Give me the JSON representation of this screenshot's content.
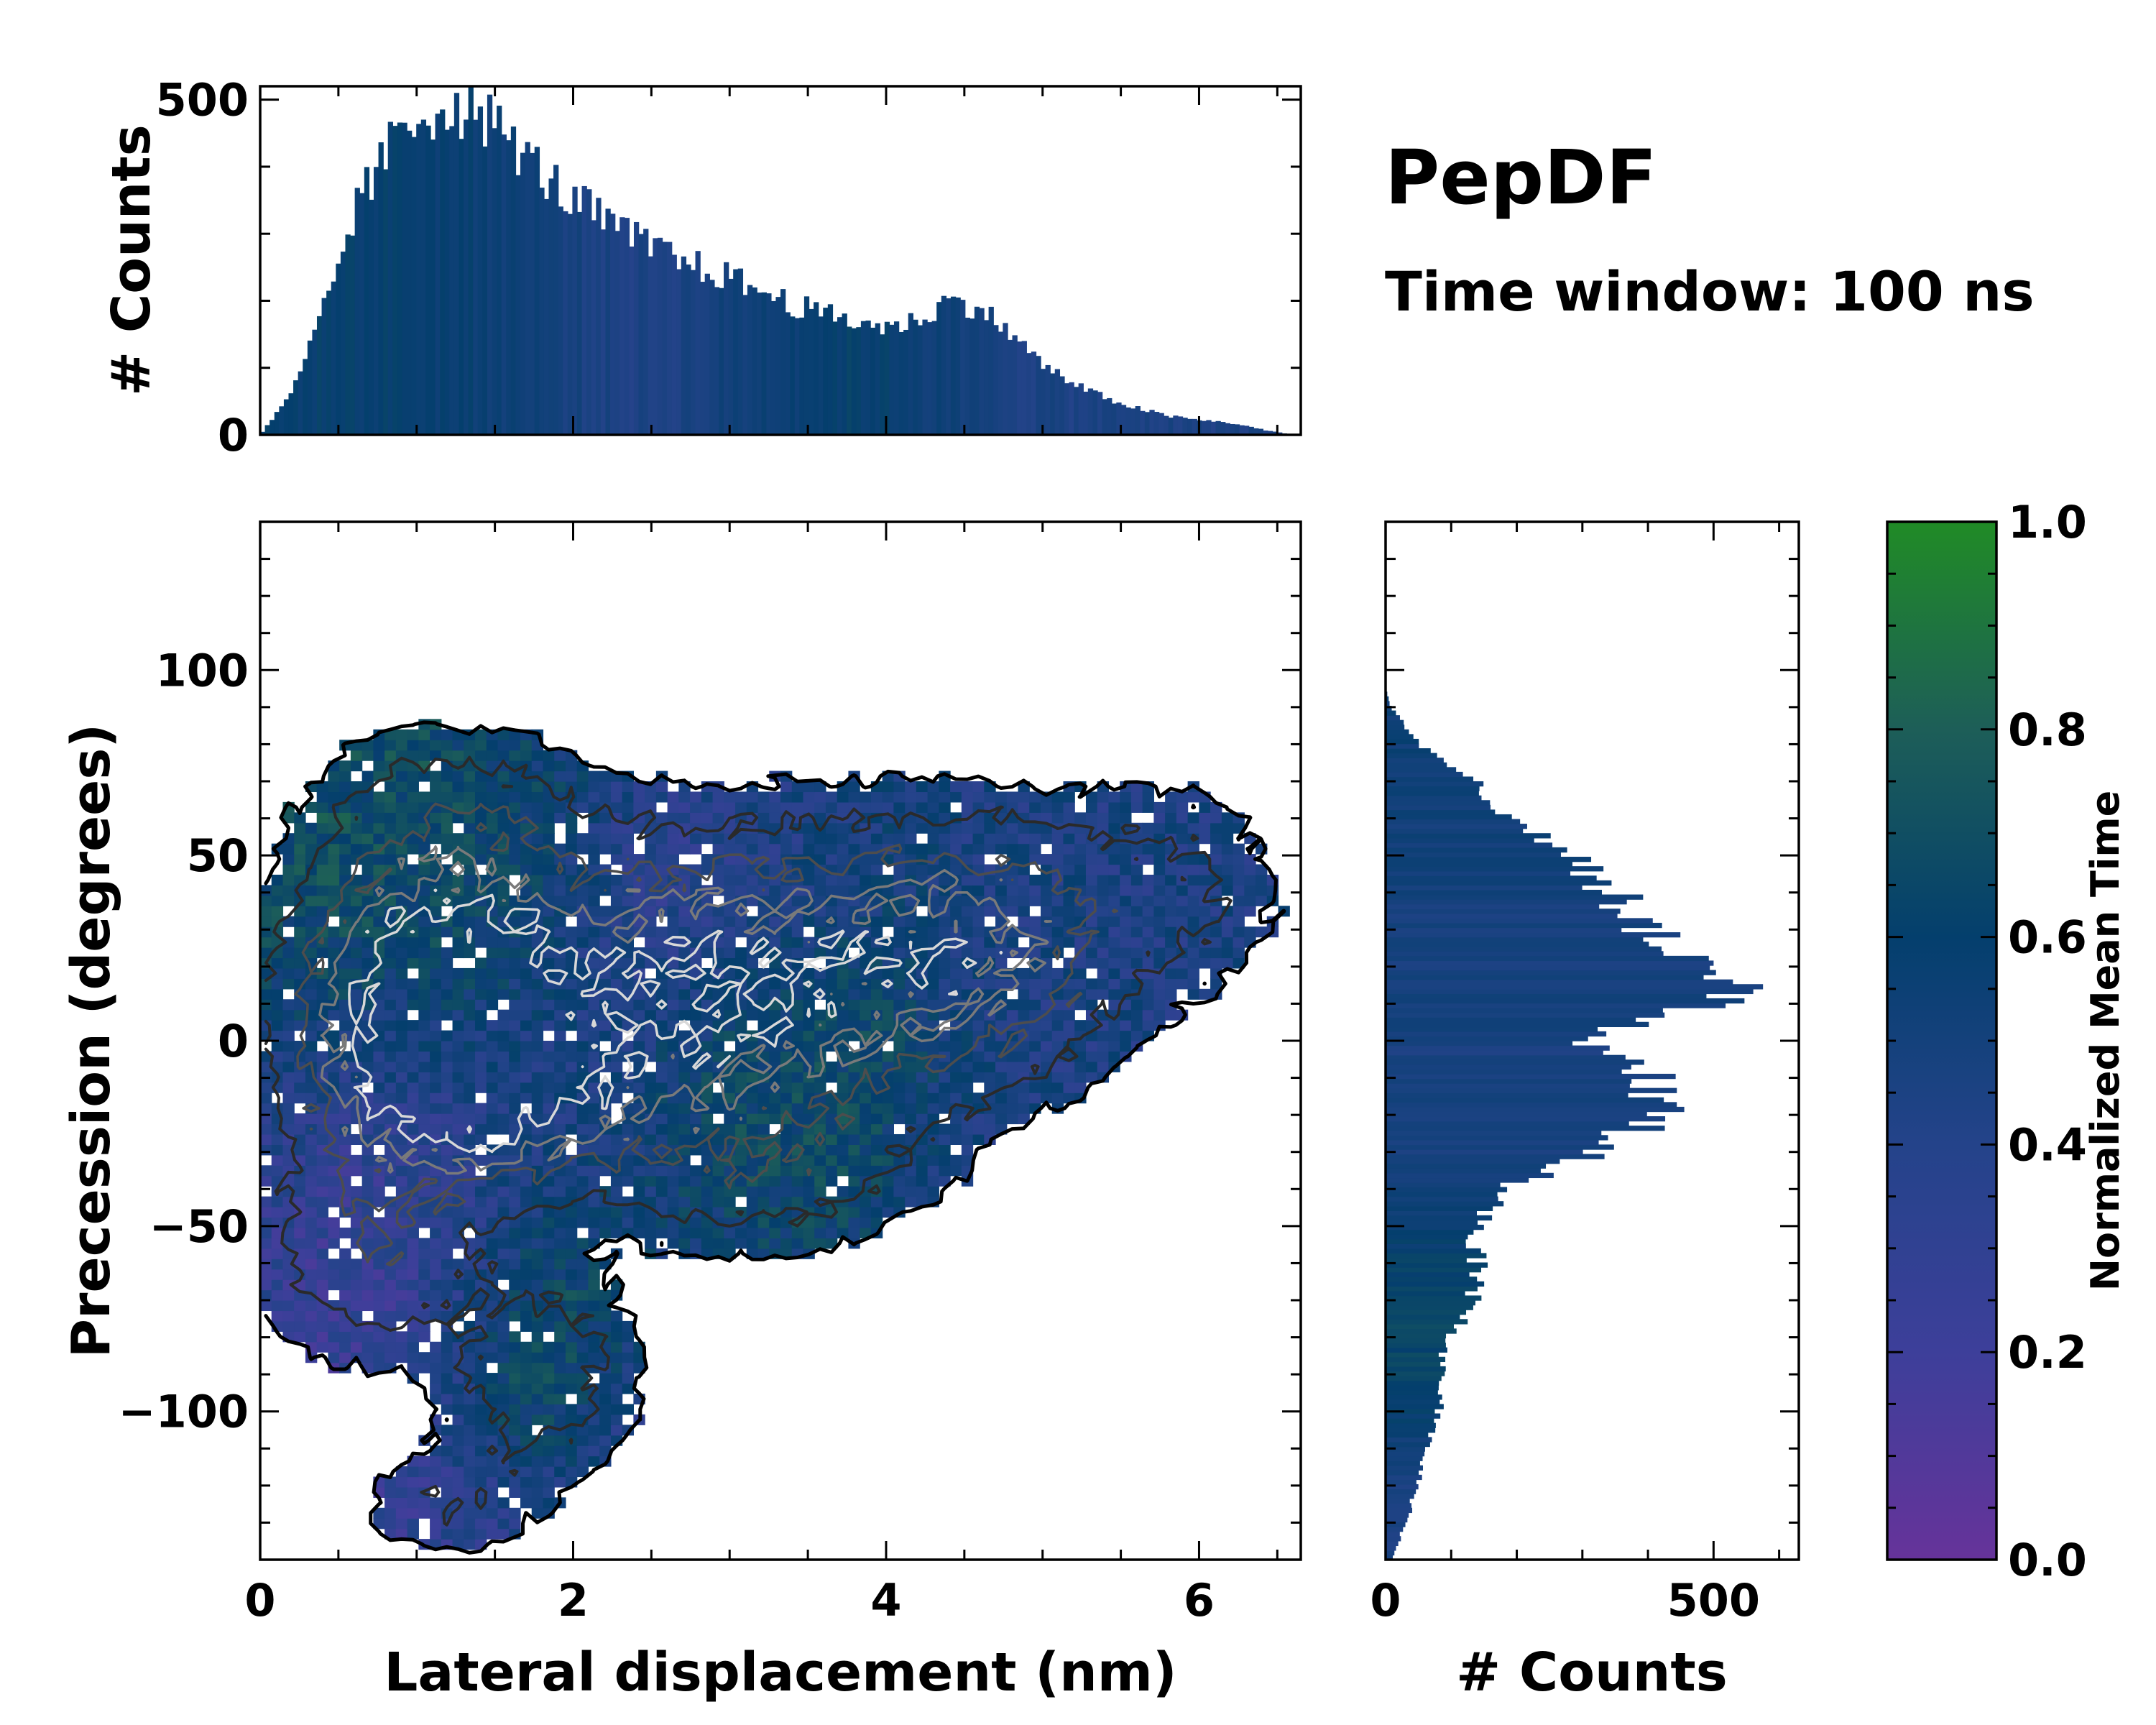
{
  "title": "PepDF",
  "subtitle": "Time window: 100 ns",
  "colors": {
    "cmap": [
      "#66339a",
      "#3d3f9a",
      "#24438a",
      "#043f6d",
      "#1d5e58",
      "#208b26"
    ],
    "contour_outer": "#000000",
    "contour_mid": "#2a2a2a",
    "contour_inner": "#7a7a7a",
    "contour_core": "#d8d8d8",
    "hist_base": "#0b4676"
  },
  "chart_data": [
    {
      "id": "joint",
      "type": "heatmap",
      "xlabel": "Lateral displacement (nm)",
      "ylabel": "Precession (degrees)",
      "xlim": [
        0,
        6.65
      ],
      "ylim": [
        -140,
        140
      ],
      "x_ticks": [
        0,
        2,
        4,
        6
      ],
      "x_tick_labels": [
        "0",
        "2",
        "4",
        "6"
      ],
      "y_ticks": [
        -100,
        -50,
        0,
        50,
        100
      ],
      "y_tick_labels": [
        "−100",
        "−50",
        "0",
        "50",
        "100"
      ],
      "density_clusters": [
        {
          "x": 1.1,
          "y": 15,
          "sx": 0.55,
          "sy": 18,
          "w": 1.0
        },
        {
          "x": 1.3,
          "y": -15,
          "sx": 0.6,
          "sy": 15,
          "w": 0.9
        },
        {
          "x": 2.5,
          "y": 10,
          "sx": 0.9,
          "sy": 25,
          "w": 0.6
        },
        {
          "x": 3.5,
          "y": 20,
          "sx": 0.9,
          "sy": 25,
          "w": 0.45
        },
        {
          "x": 4.6,
          "y": 25,
          "sx": 0.55,
          "sy": 22,
          "w": 0.5
        },
        {
          "x": 5.8,
          "y": 40,
          "sx": 0.5,
          "sy": 20,
          "w": 0.22
        },
        {
          "x": 1.2,
          "y": 55,
          "sx": 0.6,
          "sy": 18,
          "w": 0.35
        },
        {
          "x": 0.7,
          "y": -55,
          "sx": 0.5,
          "sy": 20,
          "w": 0.35
        },
        {
          "x": 1.8,
          "y": -90,
          "sx": 0.4,
          "sy": 18,
          "w": 0.32
        },
        {
          "x": 1.2,
          "y": -125,
          "sx": 0.4,
          "sy": 10,
          "w": 0.18
        },
        {
          "x": 3.2,
          "y": -35,
          "sx": 0.7,
          "sy": 15,
          "w": 0.25
        }
      ],
      "time_regions": [
        {
          "x": 0.6,
          "y": 60,
          "sx": 0.8,
          "sy": 35,
          "t": 0.8
        },
        {
          "x": 1.8,
          "y": -95,
          "sx": 0.45,
          "sy": 28,
          "t": 0.9
        },
        {
          "x": 3.4,
          "y": 0,
          "sx": 0.5,
          "sy": 40,
          "t": 0.78
        },
        {
          "x": 3.0,
          "y": 40,
          "sx": 0.5,
          "sy": 22,
          "t": 0.2
        },
        {
          "x": 0.7,
          "y": -80,
          "sx": 0.6,
          "sy": 40,
          "t": 0.15
        },
        {
          "x": 2.6,
          "y": -110,
          "sx": 0.5,
          "sy": 20,
          "t": 0.2
        },
        {
          "x": 1.4,
          "y": -125,
          "sx": 0.5,
          "sy": 12,
          "t": 0.2
        }
      ]
    },
    {
      "id": "top_hist",
      "type": "bar",
      "ylabel": "# Counts",
      "xlim": [
        0,
        6.65
      ],
      "ylim": [
        0,
        520
      ],
      "y_ticks": [
        0,
        500
      ],
      "y_tick_labels": [
        "0",
        "500"
      ],
      "x": [
        0,
        0.2,
        0.4,
        0.6,
        0.8,
        1.0,
        1.2,
        1.4,
        1.6,
        1.8,
        2.0,
        2.2,
        2.4,
        2.6,
        2.8,
        3.0,
        3.2,
        3.4,
        3.6,
        3.8,
        4.0,
        4.2,
        4.4,
        4.6,
        4.8,
        5.0,
        5.2,
        5.4,
        5.6,
        5.8,
        6.0,
        6.2,
        6.4,
        6.6
      ],
      "values": [
        0,
        60,
        180,
        330,
        420,
        470,
        495,
        480,
        440,
        390,
        350,
        320,
        290,
        270,
        250,
        235,
        215,
        195,
        180,
        170,
        160,
        170,
        200,
        190,
        150,
        105,
        75,
        55,
        40,
        28,
        22,
        18,
        8,
        0
      ],
      "bins": 220
    },
    {
      "id": "right_hist",
      "type": "bar",
      "orientation": "horizontal",
      "xlabel": "# Counts",
      "xlim": [
        0,
        630
      ],
      "ylim": [
        -140,
        140
      ],
      "x_ticks": [
        0,
        500
      ],
      "x_tick_labels": [
        "0",
        "500"
      ],
      "y": [
        -140,
        -130,
        -120,
        -110,
        -100,
        -90,
        -80,
        -70,
        -60,
        -50,
        -40,
        -30,
        -20,
        -10,
        0,
        5,
        10,
        15,
        20,
        30,
        40,
        50,
        60,
        70,
        80,
        90,
        95
      ],
      "values": [
        10,
        30,
        50,
        60,
        85,
        80,
        100,
        130,
        140,
        135,
        180,
        320,
        420,
        420,
        300,
        380,
        500,
        550,
        480,
        390,
        350,
        280,
        190,
        130,
        50,
        8,
        0
      ],
      "bins": 220
    },
    {
      "id": "colorbar",
      "type": "colorbar",
      "label": "Normalized Mean Time",
      "range": [
        0,
        1
      ],
      "ticks": [
        0,
        0.2,
        0.4,
        0.6,
        0.8,
        1.0
      ],
      "tick_labels": [
        "0.0",
        "0.2",
        "0.4",
        "0.6",
        "0.8",
        "1.0"
      ]
    }
  ]
}
